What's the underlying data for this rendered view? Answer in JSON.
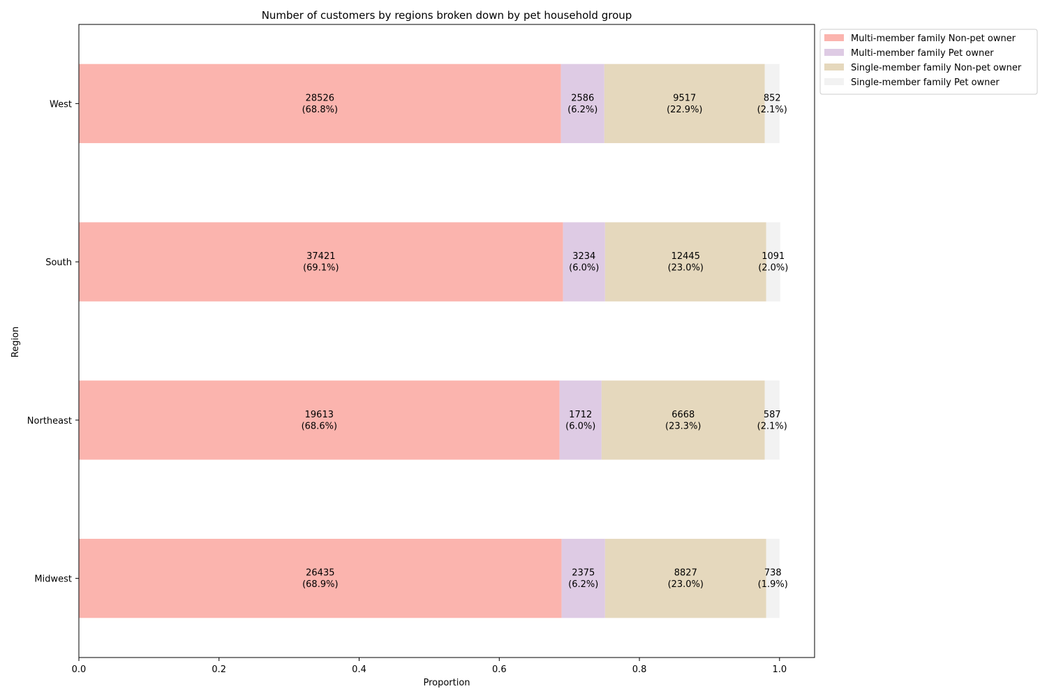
{
  "chart_data": {
    "type": "bar",
    "orientation": "horizontal",
    "stacked": true,
    "title": "Number of customers by regions broken down by pet household group",
    "xlabel": "Proportion",
    "ylabel": "Region",
    "xlim": [
      0,
      1.05
    ],
    "x_ticks": [
      "0.0",
      "0.2",
      "0.4",
      "0.6",
      "0.8",
      "1.0"
    ],
    "categories": [
      "Midwest",
      "Northeast",
      "South",
      "West"
    ],
    "grid": false,
    "legend_position": "outside-top-right",
    "series": [
      {
        "name": "Multi-member family Non-pet owner",
        "color": "#fbb4ae",
        "counts": [
          26435,
          19613,
          37421,
          28526
        ],
        "values": [
          0.689,
          0.686,
          0.691,
          0.688
        ],
        "labels": [
          "26435\n(68.9%)",
          "19613\n(68.6%)",
          "37421\n(69.1%)",
          "28526\n(68.8%)"
        ]
      },
      {
        "name": "Multi-member family Pet owner",
        "color": "#decbe4",
        "counts": [
          2375,
          1712,
          3234,
          2586
        ],
        "values": [
          0.062,
          0.06,
          0.06,
          0.062
        ],
        "labels": [
          "2375\n(6.2%)",
          "1712\n(6.0%)",
          "3234\n(6.0%)",
          "2586\n(6.2%)"
        ]
      },
      {
        "name": "Single-member family Non-pet owner",
        "color": "#e5d8bd",
        "counts": [
          8827,
          6668,
          12445,
          9517
        ],
        "values": [
          0.23,
          0.233,
          0.23,
          0.229
        ],
        "labels": [
          "8827\n(23.0%)",
          "6668\n(23.3%)",
          "12445\n(23.0%)",
          "9517\n(22.9%)"
        ]
      },
      {
        "name": "Single-member family Pet owner",
        "color": "#f2f2f2",
        "counts": [
          738,
          587,
          1091,
          852
        ],
        "values": [
          0.019,
          0.021,
          0.02,
          0.021
        ],
        "labels": [
          "738\n(1.9%)",
          "587\n(2.1%)",
          "1091\n(2.0%)",
          "852\n(2.1%)"
        ]
      }
    ]
  }
}
